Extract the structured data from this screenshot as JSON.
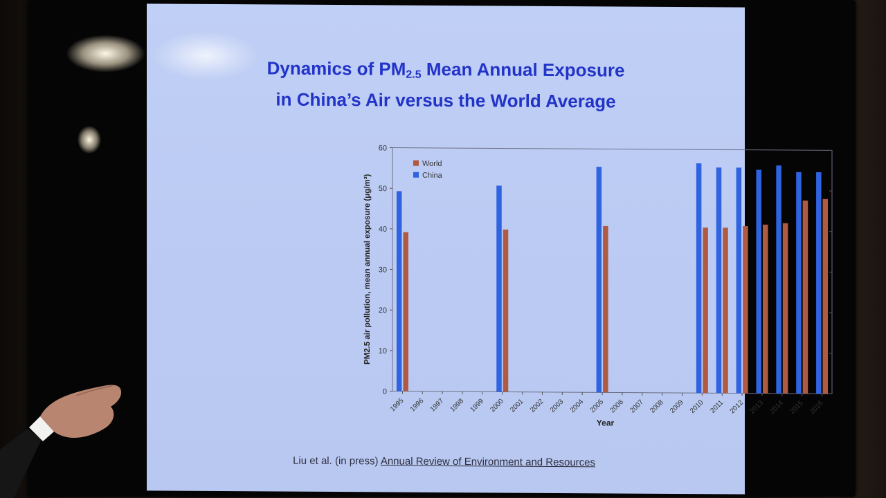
{
  "slide": {
    "title_line1_pre": "Dynamics of PM",
    "title_line1_sub": "2.5",
    "title_line1_post": " Mean Annual Exposure",
    "title_line2": "in China’s Air versus the World Average",
    "citation_authors": "Liu et al. (in press) ",
    "citation_journal": "Annual Review of Environment and Resources"
  },
  "chart_data": {
    "type": "bar",
    "categories": [
      "1995",
      "1996",
      "1997",
      "1998",
      "1999",
      "2000",
      "2001",
      "2002",
      "2003",
      "2004",
      "2005",
      "2006",
      "2007",
      "2008",
      "2009",
      "2010",
      "2011",
      "2012",
      "2013",
      "2014",
      "2015",
      "2016"
    ],
    "series": [
      {
        "name": "World",
        "color": "#b05a42",
        "values": [
          39.2,
          null,
          null,
          null,
          null,
          40.0,
          null,
          null,
          null,
          null,
          41.0,
          null,
          null,
          null,
          null,
          40.8,
          40.8,
          41.2,
          41.6,
          42.0,
          47.6,
          48.0
        ]
      },
      {
        "name": "China",
        "color": "#2f63e0",
        "values": [
          49.3,
          null,
          null,
          null,
          null,
          50.8,
          null,
          null,
          null,
          null,
          55.6,
          null,
          null,
          null,
          null,
          56.6,
          55.6,
          55.6,
          55.1,
          56.2,
          54.6,
          54.6
        ]
      }
    ],
    "xlabel": "Year",
    "ylabel": "PM2.5 air pollution, mean annual exposure (μg/m³)",
    "yticks": [
      "0",
      "10",
      "20",
      "30",
      "40",
      "50",
      "60"
    ],
    "ylim": [
      0,
      60
    ],
    "legend_position": "top-left"
  }
}
